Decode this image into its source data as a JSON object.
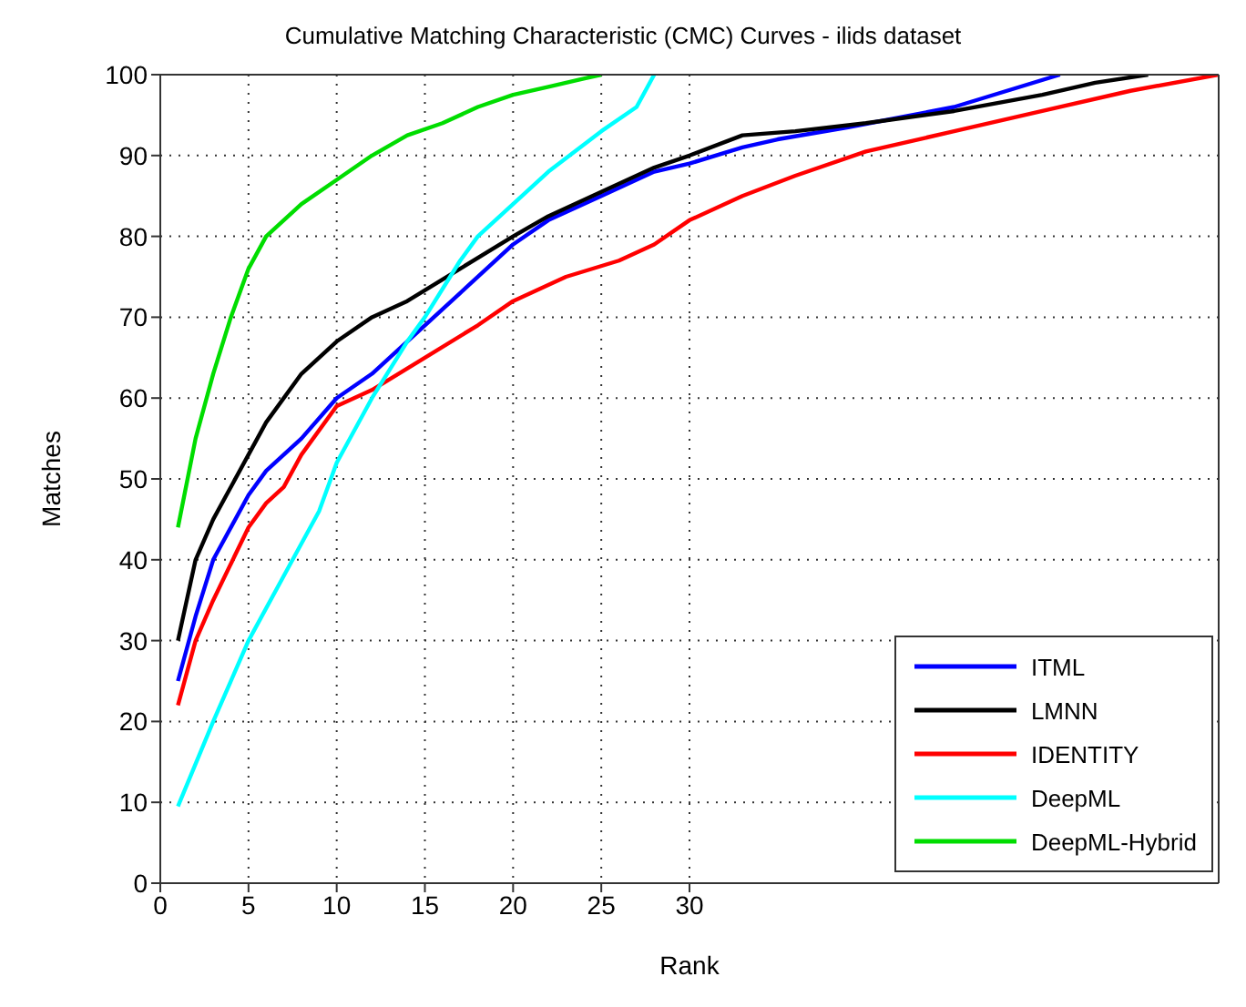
{
  "chart_data": {
    "type": "line",
    "title": "Cumulative Matching Characteristic (CMC) Curves - ilids dataset",
    "xlabel": "Rank",
    "ylabel": "Matches",
    "xlim": [
      0,
      60
    ],
    "xticks": [
      0,
      5,
      10,
      15,
      20,
      25,
      30
    ],
    "ylim": [
      0,
      100
    ],
    "yticks": [
      0,
      10,
      20,
      30,
      40,
      50,
      60,
      70,
      80,
      90,
      100
    ],
    "grid": true,
    "legend": "bottom right",
    "marker": "none",
    "line_style": "solid",
    "series": [
      {
        "name": "ITML",
        "color": "#0000ff",
        "x": [
          1,
          2,
          3,
          5,
          6,
          8,
          10,
          12,
          15,
          17,
          20,
          22,
          25,
          28,
          30,
          33,
          35,
          39,
          45,
          51
        ],
        "values": [
          25,
          33,
          40,
          48,
          51,
          55,
          60,
          63,
          69,
          73,
          79,
          82,
          85,
          88,
          89,
          91,
          92,
          93.5,
          96,
          100
        ]
      },
      {
        "name": "LMNN",
        "color": "#000000",
        "x": [
          1,
          2,
          3,
          5,
          6,
          8,
          10,
          12,
          14,
          17,
          20,
          22,
          25,
          28,
          30,
          33,
          36,
          40,
          45,
          50,
          53,
          56
        ],
        "values": [
          30,
          40,
          45,
          53,
          57,
          63,
          67,
          70,
          72,
          76,
          80,
          82.5,
          85.5,
          88.5,
          90,
          92.5,
          93,
          94,
          95.5,
          97.5,
          99,
          100
        ]
      },
      {
        "name": "IDENTITY",
        "color": "#ff0000",
        "x": [
          1,
          2,
          3,
          5,
          6,
          7,
          8,
          10,
          12,
          15,
          18,
          20,
          23,
          26,
          28,
          30,
          33,
          36,
          40,
          45,
          50,
          55,
          60
        ],
        "values": [
          22,
          30,
          35,
          44,
          47,
          49,
          53,
          59,
          61,
          65,
          69,
          72,
          75,
          77,
          79,
          82,
          85,
          87.5,
          90.5,
          93,
          95.5,
          98,
          100
        ]
      },
      {
        "name": "DeepML",
        "color": "#00ffff",
        "x": [
          1,
          3,
          5,
          7,
          9,
          10,
          12,
          14,
          15,
          17,
          18,
          20,
          22,
          25,
          27,
          28
        ],
        "values": [
          9.5,
          20,
          30,
          38,
          46,
          52,
          60,
          67,
          70,
          77,
          80,
          84,
          88,
          93,
          96,
          100
        ]
      },
      {
        "name": "DeepML-Hybrid",
        "color": "#00dd00",
        "x": [
          1,
          2,
          3,
          4,
          5,
          6,
          8,
          10,
          12,
          14,
          16,
          18,
          20,
          22,
          24,
          25
        ],
        "values": [
          44,
          55,
          63,
          70,
          76,
          80,
          84,
          87,
          90,
          92.5,
          94,
          96,
          97.5,
          98.5,
          99.5,
          100
        ]
      }
    ]
  }
}
